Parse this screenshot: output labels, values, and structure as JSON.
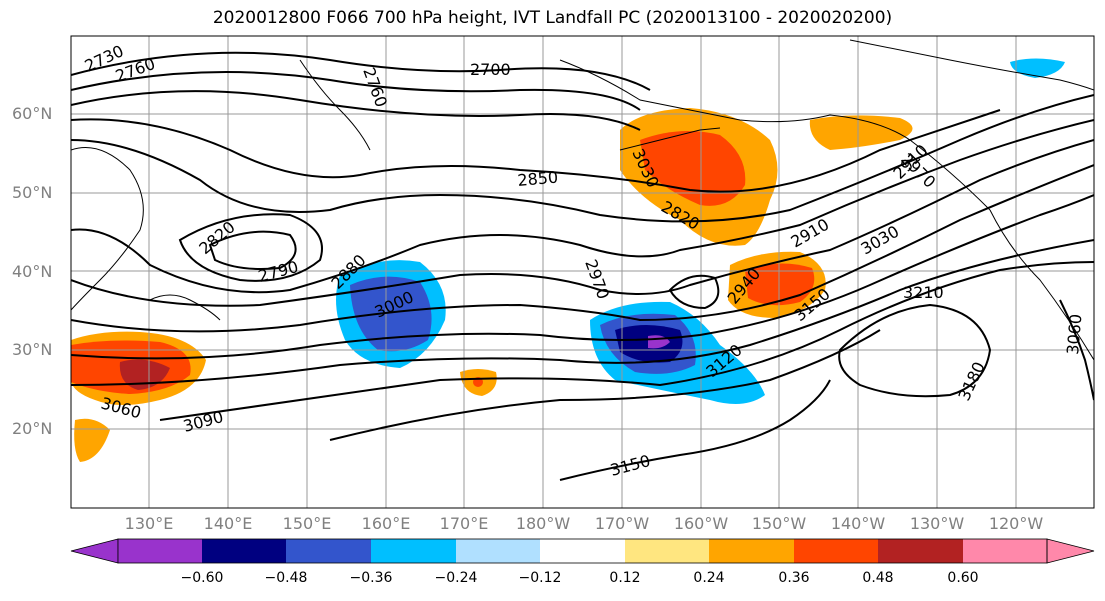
{
  "title": "2020012800 F066 700 hPa height, IVT Landfall PC (2020013100 - 2020020200)",
  "lat_labels": [
    "60°N",
    "50°N",
    "40°N",
    "30°N",
    "20°N"
  ],
  "lon_labels": [
    "130°E",
    "140°E",
    "150°E",
    "160°E",
    "170°E",
    "180°W",
    "170°W",
    "160°W",
    "150°W",
    "140°W",
    "130°W",
    "120°W"
  ],
  "contour_labels": [
    "2730",
    "2760",
    "2760",
    "2700",
    "3030",
    "2850",
    "2820",
    "2910",
    "3030",
    "2820",
    "2790",
    "2880",
    "3000",
    "2970",
    "2940",
    "3150",
    "3210",
    "3060",
    "3090",
    "3120",
    "3180",
    "3060",
    "3150",
    "2970",
    "2910"
  ],
  "colorbar": {
    "colors": [
      "#9933cc",
      "#000080",
      "#3355cc",
      "#00bfff",
      "#b0e0ff",
      "#ffffff",
      "#ffe680",
      "#ffa500",
      "#ff4500",
      "#b22222",
      "#ff88aa"
    ],
    "tick_labels": [
      "−0.60",
      "−0.48",
      "−0.36",
      "−0.24",
      "−0.12",
      "0.12",
      "0.24",
      "0.36",
      "0.48",
      "0.60"
    ]
  }
}
